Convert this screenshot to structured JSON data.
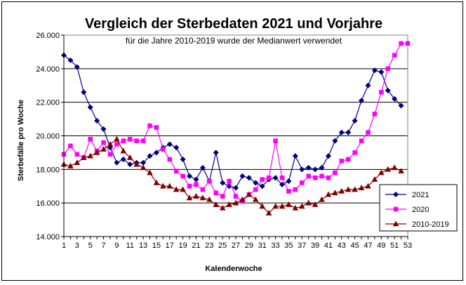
{
  "chart_data": {
    "type": "line",
    "title": "Vergleich der Sterbedaten 2021 und Vorjahre",
    "subtitle": "für die Jahre 2010-2019 wurde der Medianwert verwendet",
    "xlabel": "Kalenderwoche",
    "ylabel": "Sterbefälle pro Woche",
    "xlim": [
      1,
      53
    ],
    "ylim": [
      14000,
      26000
    ],
    "yticks": [
      {
        "value": 14000,
        "label": "14.000"
      },
      {
        "value": 16000,
        "label": "16.000"
      },
      {
        "value": 18000,
        "label": "18.000"
      },
      {
        "value": 20000,
        "label": "20.000"
      },
      {
        "value": 22000,
        "label": "22.000"
      },
      {
        "value": 24000,
        "label": "24.000"
      },
      {
        "value": 26000,
        "label": "26.000"
      }
    ],
    "xticks": [
      1,
      3,
      5,
      7,
      9,
      11,
      13,
      15,
      17,
      19,
      21,
      23,
      25,
      27,
      29,
      31,
      33,
      35,
      37,
      39,
      41,
      43,
      45,
      47,
      49,
      51,
      53
    ],
    "grid": "horizontal",
    "legend_position": "right",
    "series": [
      {
        "name": "2021",
        "color": "#000080",
        "marker": "diamond",
        "values": [
          24800,
          24500,
          24100,
          22600,
          21700,
          20900,
          20400,
          19300,
          18400,
          18600,
          18300,
          18400,
          18400,
          18800,
          19000,
          19300,
          19500,
          19300,
          18600,
          17600,
          17400,
          18100,
          17300,
          19000,
          17200,
          17000,
          16900,
          17600,
          17500,
          17200,
          17000,
          17400,
          17500,
          17100,
          17300,
          18800,
          18000,
          18100,
          18000,
          18100,
          18800,
          19700,
          20200,
          20200,
          20900,
          22100,
          23000,
          23900,
          23800,
          22700,
          22200,
          21800
        ]
      },
      {
        "name": "2020",
        "color": "#ff00ff",
        "marker": "square",
        "values": [
          18900,
          19400,
          18900,
          18700,
          19800,
          19100,
          19600,
          18900,
          19500,
          19700,
          19800,
          19700,
          19700,
          20600,
          20500,
          19200,
          18600,
          17900,
          17600,
          17000,
          17100,
          16800,
          17300,
          16600,
          16400,
          17300,
          16400,
          16100,
          16500,
          16800,
          17400,
          17500,
          19700,
          17500,
          16700,
          16800,
          17200,
          17600,
          17500,
          17600,
          17500,
          17800,
          18500,
          18600,
          19000,
          19700,
          20200,
          21300,
          22600,
          24000,
          24800,
          25500,
          25500
        ]
      },
      {
        "name": "2010-2019",
        "color": "#800000",
        "marker": "triangle",
        "values": [
          18300,
          18200,
          18400,
          18700,
          18800,
          19000,
          19200,
          19500,
          19800,
          19100,
          18700,
          18300,
          18100,
          17800,
          17200,
          17000,
          17000,
          16800,
          16800,
          16300,
          16400,
          16300,
          16200,
          15900,
          15700,
          15900,
          16000,
          16200,
          16500,
          16200,
          15800,
          15400,
          15800,
          15800,
          15900,
          15700,
          15800,
          16000,
          15900,
          16200,
          16500,
          16600,
          16700,
          16800,
          16800,
          16900,
          17000,
          17400,
          17800,
          18000,
          18100,
          17900
        ]
      }
    ]
  }
}
